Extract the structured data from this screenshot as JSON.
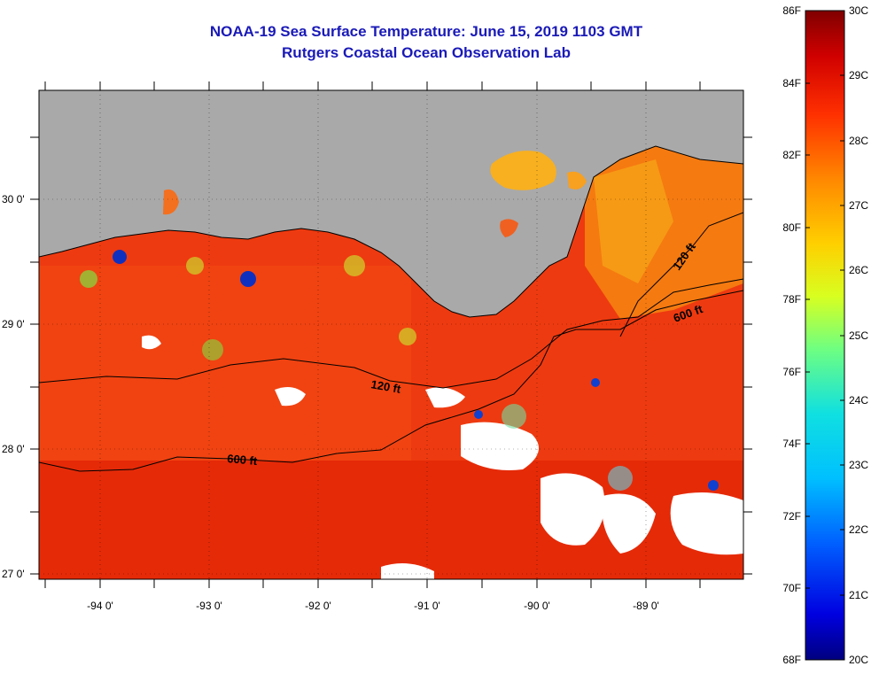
{
  "title": "NOAA-19 Sea Surface Temperature:  June 15, 2019 1103 GMT",
  "subtitle": "Rutgers Coastal Ocean Observation Lab",
  "lon_labels": [
    "-94 0'",
    "-93 0'",
    "-92 0'",
    "-91 0'",
    "-90 0'",
    "-89 0'"
  ],
  "lat_labels": [
    "30 0'",
    "29 0'",
    "28 0'",
    "27 0'"
  ],
  "contour_labels": [
    "120 ft",
    "600 ft",
    "120 ft",
    "600 ft"
  ],
  "colorbar": {
    "fahrenheit_labels": [
      "86F",
      "84F",
      "82F",
      "80F",
      "78F",
      "76F",
      "74F",
      "72F",
      "70F",
      "68F"
    ],
    "celsius_labels": [
      "30C",
      "29C",
      "28C",
      "27C",
      "26C",
      "25C",
      "24C",
      "23C",
      "22C",
      "21C",
      "20C"
    ],
    "colors": [
      "#7f0000",
      "#d40000",
      "#ff3000",
      "#ff8800",
      "#ffd000",
      "#d8ff20",
      "#6cff8a",
      "#10e0e8",
      "#0090ff",
      "#0030ff",
      "#000090"
    ]
  },
  "colors": {
    "land": "#a9a9a9",
    "sea_warm": "#f03a0c",
    "sea_hot": "#e01000",
    "cloud": "#ffffff",
    "title": "#1a1ab8"
  }
}
